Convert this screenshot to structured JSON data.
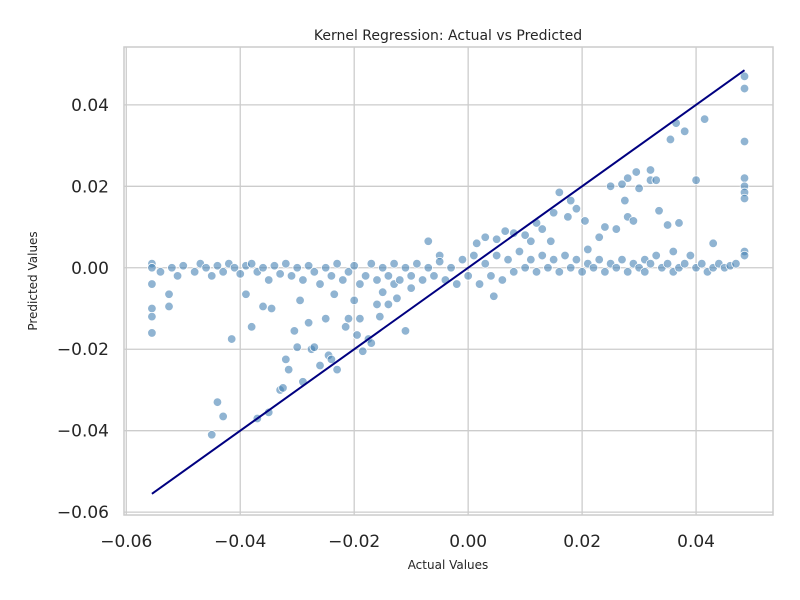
{
  "chart_data": {
    "type": "scatter",
    "title": "Kernel Regression: Actual vs Predicted",
    "xlabel": "Actual Values",
    "ylabel": "Predicted Values",
    "xlim": [
      -0.0604,
      0.0535
    ],
    "ylim": [
      -0.0607,
      0.0542
    ],
    "xticks": [
      -0.06,
      -0.04,
      -0.02,
      0.0,
      0.02,
      0.04
    ],
    "xtick_labels": [
      "−0.06",
      "−0.04",
      "−0.02",
      "0.00",
      "0.02",
      "0.04"
    ],
    "yticks": [
      -0.06,
      -0.04,
      -0.02,
      0.0,
      0.02,
      0.04
    ],
    "ytick_labels": [
      "−0.06",
      "−0.04",
      "−0.02",
      "0.00",
      "0.02",
      "0.04"
    ],
    "grid": true,
    "point_color": "#4682b4",
    "line_color": "#000080",
    "reference_line": {
      "x": [
        -0.0555,
        0.0485
      ],
      "y": [
        -0.0555,
        0.0485
      ]
    },
    "points": [
      [
        -0.0555,
        0.001
      ],
      [
        -0.0555,
        0.0
      ],
      [
        -0.0555,
        -0.004
      ],
      [
        -0.0555,
        -0.01
      ],
      [
        -0.0555,
        -0.012
      ],
      [
        -0.0555,
        -0.016
      ],
      [
        -0.0525,
        -0.0065
      ],
      [
        -0.0525,
        -0.0095
      ],
      [
        -0.045,
        -0.041
      ],
      [
        -0.044,
        -0.033
      ],
      [
        -0.043,
        -0.0365
      ],
      [
        -0.0415,
        -0.0175
      ],
      [
        -0.039,
        -0.0065
      ],
      [
        -0.038,
        -0.0145
      ],
      [
        -0.037,
        -0.037
      ],
      [
        -0.036,
        -0.0095
      ],
      [
        -0.035,
        -0.0355
      ],
      [
        -0.0345,
        -0.01
      ],
      [
        -0.033,
        -0.03
      ],
      [
        -0.0325,
        -0.0295
      ],
      [
        -0.032,
        -0.0225
      ],
      [
        -0.0315,
        -0.025
      ],
      [
        -0.0305,
        -0.0155
      ],
      [
        -0.03,
        -0.0195
      ],
      [
        -0.0295,
        -0.008
      ],
      [
        -0.029,
        -0.028
      ],
      [
        -0.028,
        -0.0135
      ],
      [
        -0.0275,
        -0.02
      ],
      [
        -0.027,
        -0.0195
      ],
      [
        -0.026,
        -0.024
      ],
      [
        -0.025,
        -0.0125
      ],
      [
        -0.0245,
        -0.0215
      ],
      [
        -0.024,
        -0.0225
      ],
      [
        -0.0235,
        -0.0065
      ],
      [
        -0.023,
        -0.025
      ],
      [
        -0.0215,
        -0.0145
      ],
      [
        -0.021,
        -0.0125
      ],
      [
        -0.02,
        -0.008
      ],
      [
        -0.0195,
        -0.0165
      ],
      [
        -0.019,
        -0.0125
      ],
      [
        -0.0185,
        -0.0205
      ],
      [
        -0.0175,
        -0.0175
      ],
      [
        -0.017,
        -0.0185
      ],
      [
        -0.016,
        -0.009
      ],
      [
        -0.0155,
        -0.012
      ],
      [
        -0.015,
        -0.006
      ],
      [
        -0.014,
        -0.009
      ],
      [
        -0.013,
        -0.004
      ],
      [
        -0.0125,
        -0.0075
      ],
      [
        -0.011,
        -0.0155
      ],
      [
        -0.01,
        -0.005
      ],
      [
        -0.007,
        0.0065
      ],
      [
        -0.005,
        0.003
      ],
      [
        0.0485,
        0.047
      ],
      [
        0.0485,
        0.044
      ],
      [
        0.0485,
        0.031
      ],
      [
        0.0485,
        0.022
      ],
      [
        0.0485,
        0.02
      ],
      [
        0.0485,
        0.0185
      ],
      [
        0.0485,
        0.017
      ],
      [
        0.0485,
        0.004
      ],
      [
        0.0485,
        0.003
      ],
      [
        0.0415,
        0.0365
      ],
      [
        0.038,
        0.0335
      ],
      [
        0.0365,
        0.0355
      ],
      [
        0.0355,
        0.0315
      ],
      [
        0.037,
        0.011
      ],
      [
        0.04,
        0.0215
      ],
      [
        0.035,
        0.0105
      ],
      [
        0.0335,
        0.014
      ],
      [
        0.032,
        0.024
      ],
      [
        0.032,
        0.0215
      ],
      [
        0.033,
        0.0215
      ],
      [
        0.0295,
        0.0235
      ],
      [
        0.03,
        0.0195
      ],
      [
        0.028,
        0.022
      ],
      [
        0.027,
        0.0205
      ],
      [
        0.025,
        0.02
      ],
      [
        0.0275,
        0.0165
      ],
      [
        0.028,
        0.0125
      ],
      [
        0.029,
        0.0115
      ],
      [
        0.026,
        0.0095
      ],
      [
        0.024,
        0.01
      ],
      [
        0.023,
        0.0075
      ],
      [
        0.0205,
        0.0115
      ],
      [
        0.021,
        0.0045
      ],
      [
        0.019,
        0.0145
      ],
      [
        0.018,
        0.0165
      ],
      [
        0.016,
        0.0185
      ],
      [
        0.0175,
        0.0125
      ],
      [
        0.015,
        0.0135
      ],
      [
        0.013,
        0.0095
      ],
      [
        0.0145,
        0.0065
      ],
      [
        0.012,
        0.011
      ],
      [
        0.011,
        0.0065
      ],
      [
        0.01,
        0.008
      ],
      [
        0.008,
        0.0085
      ],
      [
        0.0065,
        0.009
      ],
      [
        0.005,
        0.007
      ],
      [
        0.003,
        0.0075
      ],
      [
        0.0015,
        0.006
      ],
      [
        0.0045,
        -0.007
      ],
      [
        0.043,
        0.006
      ],
      [
        0.039,
        0.003
      ],
      [
        0.036,
        0.004
      ],
      [
        0.033,
        0.003
      ],
      [
        0.031,
        0.002
      ],
      [
        -0.054,
        -0.001
      ],
      [
        -0.052,
        0.0
      ],
      [
        -0.051,
        -0.002
      ],
      [
        -0.05,
        0.0005
      ],
      [
        -0.048,
        -0.001
      ],
      [
        -0.047,
        0.001
      ],
      [
        -0.046,
        0.0
      ],
      [
        -0.045,
        -0.002
      ],
      [
        -0.044,
        0.0005
      ],
      [
        -0.043,
        -0.001
      ],
      [
        -0.042,
        0.001
      ],
      [
        -0.041,
        0.0
      ],
      [
        -0.04,
        -0.0015
      ],
      [
        -0.039,
        0.0005
      ],
      [
        -0.038,
        0.001
      ],
      [
        -0.037,
        -0.001
      ],
      [
        -0.036,
        0.0
      ],
      [
        -0.035,
        -0.003
      ],
      [
        -0.034,
        0.0005
      ],
      [
        -0.033,
        -0.0015
      ],
      [
        -0.032,
        0.001
      ],
      [
        -0.031,
        -0.002
      ],
      [
        -0.03,
        0.0
      ],
      [
        -0.029,
        -0.003
      ],
      [
        -0.028,
        0.0005
      ],
      [
        -0.027,
        -0.001
      ],
      [
        -0.026,
        -0.004
      ],
      [
        -0.025,
        0.0
      ],
      [
        -0.024,
        -0.002
      ],
      [
        -0.023,
        0.001
      ],
      [
        -0.022,
        -0.003
      ],
      [
        -0.021,
        -0.001
      ],
      [
        -0.02,
        0.0005
      ],
      [
        -0.019,
        -0.004
      ],
      [
        -0.018,
        -0.002
      ],
      [
        -0.017,
        0.001
      ],
      [
        -0.016,
        -0.003
      ],
      [
        -0.015,
        0.0
      ],
      [
        -0.014,
        -0.002
      ],
      [
        -0.013,
        0.001
      ],
      [
        -0.012,
        -0.003
      ],
      [
        -0.011,
        0.0
      ],
      [
        -0.01,
        -0.002
      ],
      [
        -0.009,
        0.001
      ],
      [
        -0.008,
        -0.003
      ],
      [
        -0.007,
        0.0
      ],
      [
        -0.006,
        -0.002
      ],
      [
        -0.005,
        0.0015
      ],
      [
        -0.004,
        -0.003
      ],
      [
        -0.003,
        0.0
      ],
      [
        -0.002,
        -0.004
      ],
      [
        -0.001,
        0.002
      ],
      [
        0.0,
        -0.002
      ],
      [
        0.001,
        0.003
      ],
      [
        0.002,
        -0.004
      ],
      [
        0.003,
        0.001
      ],
      [
        0.004,
        -0.002
      ],
      [
        0.005,
        0.003
      ],
      [
        0.006,
        -0.003
      ],
      [
        0.007,
        0.002
      ],
      [
        0.008,
        -0.001
      ],
      [
        0.009,
        0.004
      ],
      [
        0.01,
        0.0
      ],
      [
        0.011,
        0.002
      ],
      [
        0.012,
        -0.001
      ],
      [
        0.013,
        0.003
      ],
      [
        0.014,
        0.0
      ],
      [
        0.015,
        0.002
      ],
      [
        0.016,
        -0.001
      ],
      [
        0.017,
        0.003
      ],
      [
        0.018,
        0.0
      ],
      [
        0.019,
        0.002
      ],
      [
        0.02,
        -0.001
      ],
      [
        0.021,
        0.001
      ],
      [
        0.022,
        0.0
      ],
      [
        0.023,
        0.002
      ],
      [
        0.024,
        -0.001
      ],
      [
        0.025,
        0.001
      ],
      [
        0.026,
        0.0
      ],
      [
        0.027,
        0.002
      ],
      [
        0.028,
        -0.001
      ],
      [
        0.029,
        0.001
      ],
      [
        0.03,
        0.0
      ],
      [
        0.031,
        -0.001
      ],
      [
        0.032,
        0.001
      ],
      [
        0.034,
        0.0
      ],
      [
        0.035,
        0.001
      ],
      [
        0.036,
        -0.001
      ],
      [
        0.037,
        0.0
      ],
      [
        0.038,
        0.001
      ],
      [
        0.04,
        0.0
      ],
      [
        0.041,
        0.001
      ],
      [
        0.042,
        -0.001
      ],
      [
        0.043,
        0.0
      ],
      [
        0.044,
        0.001
      ],
      [
        0.045,
        0.0
      ],
      [
        0.046,
        0.0005
      ],
      [
        0.047,
        0.001
      ]
    ]
  }
}
